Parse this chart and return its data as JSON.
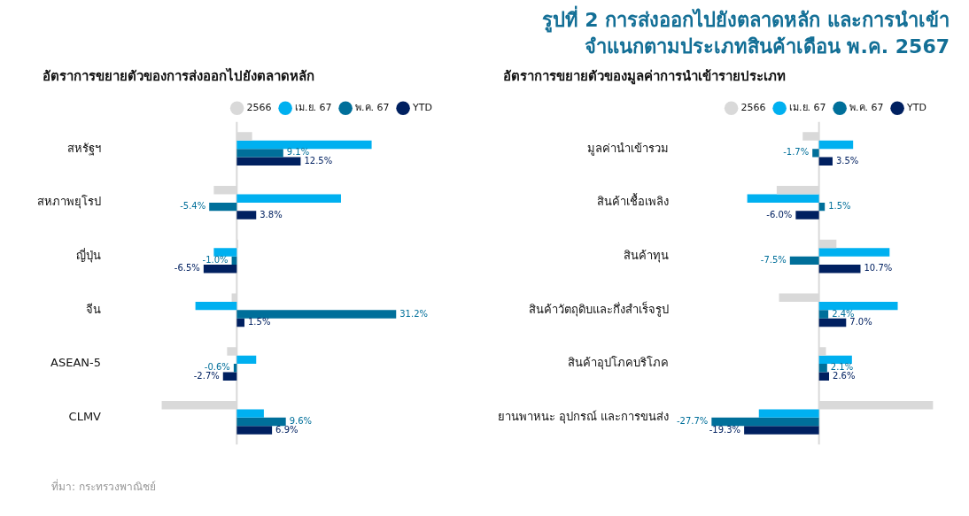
{
  "chart_data": [
    {
      "type": "bar",
      "orientation": "horizontal",
      "subtitle": "อัตราการขยายตัวของการส่งออกไปยังตลาดหลัก",
      "categories": [
        "สหรัฐฯ",
        "สหภาพยุโรป",
        "ญี่ปุ่น",
        "จีน",
        "ASEAN-5",
        "CLMV"
      ],
      "tick_labels": "y",
      "legend": "top",
      "ref_lines": [
        {
          "axis": "x",
          "value": 0,
          "color": "#d9d9d9"
        }
      ],
      "annotations": [
        "ที่มา: กระทรวงพาณิชย์"
      ],
      "series": [
        {
          "name": "2566",
          "color": "#d9d9d9",
          "values": [
            3.0,
            -4.5,
            0.3,
            -1.0,
            -1.9,
            -14.7
          ]
        },
        {
          "name": "เม.ย. 67",
          "color": "#00b0f0",
          "values": [
            26.4,
            20.4,
            -4.5,
            -8.1,
            3.8,
            5.3
          ]
        },
        {
          "name": "พ.ค. 67",
          "color": "#006f9a",
          "values": [
            9.1,
            -5.4,
            -1.0,
            31.2,
            -0.6,
            9.6
          ],
          "value_labels": [
            "9.1%",
            "-5.4%",
            "-1.0%",
            "31.2%",
            "-0.6%",
            "9.6%"
          ]
        },
        {
          "name": "YTD",
          "color": "#002060",
          "values": [
            12.5,
            3.8,
            -6.5,
            1.5,
            -2.7,
            6.9
          ],
          "value_labels": [
            "12.5%",
            "3.8%",
            "-6.5%",
            "1.5%",
            "-2.7%",
            "6.9%"
          ]
        }
      ]
    },
    {
      "type": "bar",
      "orientation": "horizontal",
      "title": "รูปที่ 2  การส่งออกไปยังตลาดหลัก และการนำเข้าจำแนกตามประเภทสินค้าเดือน พ.ค. 2567",
      "subtitle": "อัตราการขยายตัวของมูลค่าการนำเข้ารายประเภท",
      "categories": [
        "มูลค่านำเข้ารวม",
        "สินค้าเชื้อเพลิง",
        "สินค้าทุน",
        "สินค้าวัตถุดิบและกึ่งสำเร็จรูป",
        "สินค้าอุปโภคบริโภค",
        "ยานพาหนะ อุปกรณ์ และการขนส่ง"
      ],
      "tick_labels": "y",
      "legend": "top",
      "ref_lines": [
        {
          "axis": "x",
          "value": 0,
          "color": "#d9d9d9"
        }
      ],
      "series": [
        {
          "name": "2566",
          "color": "#d9d9d9",
          "values": [
            -4.2,
            -10.9,
            4.5,
            -10.3,
            1.8,
            29.4
          ]
        },
        {
          "name": "เม.ย. 67",
          "color": "#00b0f0",
          "values": [
            8.8,
            -18.5,
            18.2,
            20.3,
            8.5,
            -15.5
          ]
        },
        {
          "name": "พ.ค. 67",
          "color": "#006f9a",
          "values": [
            -1.7,
            1.5,
            -7.5,
            2.4,
            2.1,
            -27.7
          ],
          "value_labels": [
            "-1.7%",
            "1.5%",
            "-7.5%",
            "2.4%",
            "2.1%",
            "-27.7%"
          ]
        },
        {
          "name": "YTD",
          "color": "#002060",
          "values": [
            3.5,
            -6.0,
            10.7,
            7.0,
            2.6,
            -19.3
          ],
          "value_labels": [
            "3.5%",
            "-6.0%",
            "10.7%",
            "7.0%",
            "2.6%",
            "-19.3%"
          ]
        }
      ]
    }
  ]
}
